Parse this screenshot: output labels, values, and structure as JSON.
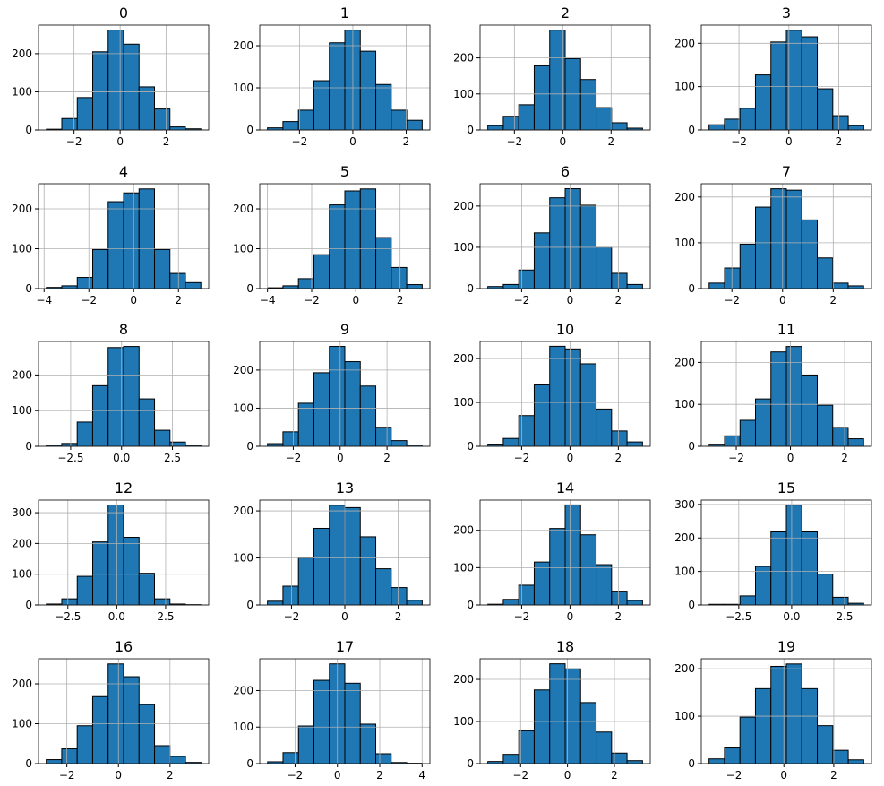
{
  "chart_data": [
    {
      "type": "histogram",
      "title": "0",
      "color": "#1f77b4",
      "grid": true,
      "bins": [
        -3.2,
        -2.53,
        -1.86,
        -1.19,
        -0.52,
        0.15,
        0.82,
        1.49,
        2.16,
        2.83,
        3.5
      ],
      "counts": [
        2,
        30,
        85,
        205,
        262,
        225,
        113,
        55,
        8,
        3
      ],
      "xlim": [
        -3.54,
        3.84
      ],
      "ylim": [
        0,
        275
      ],
      "xticks": [
        {
          "value": -2,
          "label": "−2"
        },
        0,
        2
      ],
      "yticks": [
        0,
        100,
        200
      ]
    },
    {
      "type": "histogram",
      "title": "1",
      "color": "#1f77b4",
      "grid": true,
      "bins": [
        -3.2,
        -2.62,
        -2.04,
        -1.46,
        -0.88,
        -0.3,
        0.28,
        0.86,
        1.44,
        2.02,
        2.6
      ],
      "counts": [
        5,
        20,
        47,
        117,
        207,
        237,
        187,
        108,
        47,
        23
      ],
      "xlim": [
        -3.49,
        2.89
      ],
      "ylim": [
        0,
        249
      ],
      "xticks": [
        {
          "value": -2,
          "label": "−2"
        },
        0,
        2
      ],
      "yticks": [
        0,
        100,
        200
      ]
    },
    {
      "type": "histogram",
      "title": "2",
      "color": "#1f77b4",
      "grid": true,
      "bins": [
        -3.1,
        -2.46,
        -1.82,
        -1.18,
        -0.54,
        0.1,
        0.74,
        1.38,
        2.02,
        2.66,
        3.3
      ],
      "counts": [
        12,
        38,
        70,
        178,
        277,
        198,
        140,
        62,
        20,
        5
      ],
      "xlim": [
        -3.42,
        3.62
      ],
      "ylim": [
        0,
        291
      ],
      "xticks": [
        {
          "value": -2,
          "label": "−2"
        },
        0,
        2
      ],
      "yticks": [
        0,
        100,
        200
      ]
    },
    {
      "type": "histogram",
      "title": "3",
      "color": "#1f77b4",
      "grid": true,
      "bins": [
        -3.2,
        -2.58,
        -1.96,
        -1.34,
        -0.72,
        -0.1,
        0.52,
        1.14,
        1.76,
        2.38,
        3.0
      ],
      "counts": [
        12,
        25,
        50,
        127,
        203,
        230,
        215,
        95,
        33,
        10
      ],
      "xlim": [
        -3.51,
        3.31
      ],
      "ylim": [
        0,
        242
      ],
      "xticks": [
        {
          "value": -2,
          "label": "−2"
        },
        0,
        2
      ],
      "yticks": [
        0,
        100,
        200
      ]
    },
    {
      "type": "histogram",
      "title": "4",
      "color": "#1f77b4",
      "grid": true,
      "bins": [
        -3.9,
        -3.21,
        -2.52,
        -1.83,
        -1.14,
        -0.45,
        0.24,
        0.93,
        1.62,
        2.31,
        3.0
      ],
      "counts": [
        3,
        7,
        28,
        98,
        218,
        240,
        250,
        98,
        38,
        15
      ],
      "xlim": [
        -4.25,
        3.35
      ],
      "ylim": [
        0,
        263
      ],
      "xticks": [
        {
          "value": -4,
          "label": "−4"
        },
        {
          "value": -2,
          "label": "−2"
        },
        0,
        2
      ],
      "yticks": [
        0,
        100,
        200
      ]
    },
    {
      "type": "histogram",
      "title": "5",
      "color": "#1f77b4",
      "grid": true,
      "bins": [
        -4.0,
        -3.3,
        -2.6,
        -1.9,
        -1.2,
        -0.5,
        0.2,
        0.9,
        1.6,
        2.3,
        3.0
      ],
      "counts": [
        2,
        7,
        25,
        85,
        210,
        245,
        250,
        128,
        53,
        10
      ],
      "xlim": [
        -4.35,
        3.35
      ],
      "ylim": [
        0,
        263
      ],
      "xticks": [
        {
          "value": -4,
          "label": "−4"
        },
        {
          "value": -2,
          "label": "−2"
        },
        0,
        2
      ],
      "yticks": [
        0,
        100,
        200
      ]
    },
    {
      "type": "histogram",
      "title": "6",
      "color": "#1f77b4",
      "grid": true,
      "bins": [
        -3.4,
        -2.76,
        -2.12,
        -1.48,
        -0.84,
        -0.2,
        0.44,
        1.08,
        1.72,
        2.36,
        3.0
      ],
      "counts": [
        5,
        10,
        45,
        135,
        220,
        242,
        202,
        100,
        37,
        10
      ],
      "xlim": [
        -3.72,
        3.32
      ],
      "ylim": [
        0,
        254
      ],
      "xticks": [
        {
          "value": -2,
          "label": "−2"
        },
        0,
        2
      ],
      "yticks": [
        0,
        100,
        200
      ]
    },
    {
      "type": "histogram",
      "title": "7",
      "color": "#1f77b4",
      "grid": true,
      "bins": [
        -2.9,
        -2.29,
        -1.68,
        -1.07,
        -0.46,
        0.15,
        0.76,
        1.37,
        1.98,
        2.59,
        3.2
      ],
      "counts": [
        12,
        45,
        97,
        178,
        218,
        215,
        150,
        67,
        12,
        6
      ],
      "xlim": [
        -3.21,
        3.51
      ],
      "ylim": [
        0,
        229
      ],
      "xticks": [
        {
          "value": -2,
          "label": "−2"
        },
        0,
        2
      ],
      "yticks": [
        0,
        100,
        200
      ]
    },
    {
      "type": "histogram",
      "title": "8",
      "color": "#1f77b4",
      "grid": true,
      "bins": [
        -3.7,
        -2.94,
        -2.18,
        -1.42,
        -0.66,
        0.1,
        0.86,
        1.62,
        2.38,
        3.14,
        3.9
      ],
      "counts": [
        3,
        8,
        68,
        170,
        277,
        280,
        133,
        45,
        12,
        3
      ],
      "xlim": [
        -4.08,
        4.28
      ],
      "ylim": [
        0,
        294
      ],
      "xticks": [
        {
          "value": -2.5,
          "label": "−2.5"
        },
        {
          "value": 0,
          "label": "0.0"
        },
        2.5
      ],
      "yticks": [
        0,
        100,
        200
      ]
    },
    {
      "type": "histogram",
      "title": "9",
      "color": "#1f77b4",
      "grid": true,
      "bins": [
        -3.1,
        -2.44,
        -1.78,
        -1.12,
        -0.46,
        0.2,
        0.86,
        1.52,
        2.18,
        2.84,
        3.5
      ],
      "counts": [
        7,
        38,
        113,
        193,
        262,
        222,
        158,
        50,
        15,
        3
      ],
      "xlim": [
        -3.43,
        3.83
      ],
      "ylim": [
        0,
        275
      ],
      "xticks": [
        {
          "value": -2,
          "label": "−2"
        },
        0,
        2
      ],
      "yticks": [
        0,
        100,
        200
      ]
    },
    {
      "type": "histogram",
      "title": "10",
      "color": "#1f77b4",
      "grid": true,
      "bins": [
        -3.4,
        -2.76,
        -2.12,
        -1.48,
        -0.84,
        -0.2,
        0.44,
        1.08,
        1.72,
        2.36,
        3.0
      ],
      "counts": [
        5,
        18,
        70,
        140,
        228,
        222,
        188,
        85,
        35,
        10
      ],
      "xlim": [
        -3.72,
        3.32
      ],
      "ylim": [
        0,
        239
      ],
      "xticks": [
        {
          "value": -2,
          "label": "−2"
        },
        0,
        2
      ],
      "yticks": [
        0,
        100,
        200
      ]
    },
    {
      "type": "histogram",
      "title": "11",
      "color": "#1f77b4",
      "grid": true,
      "bins": [
        -3.0,
        -2.43,
        -1.86,
        -1.29,
        -0.72,
        -0.15,
        0.42,
        0.99,
        1.56,
        2.13,
        2.7
      ],
      "counts": [
        5,
        25,
        62,
        113,
        225,
        238,
        170,
        98,
        45,
        18
      ],
      "xlim": [
        -3.29,
        2.99
      ],
      "ylim": [
        0,
        250
      ],
      "xticks": [
        {
          "value": -2,
          "label": "−2"
        },
        0,
        2
      ],
      "yticks": [
        0,
        100,
        200
      ]
    },
    {
      "type": "histogram",
      "title": "12",
      "color": "#1f77b4",
      "grid": true,
      "bins": [
        -3.6,
        -2.81,
        -2.02,
        -1.23,
        -0.44,
        0.35,
        1.14,
        1.93,
        2.72,
        3.51,
        4.3
      ],
      "counts": [
        3,
        20,
        93,
        205,
        325,
        220,
        103,
        20,
        3,
        1
      ],
      "xlim": [
        -4.0,
        4.7
      ],
      "ylim": [
        0,
        341
      ],
      "xticks": [
        {
          "value": -2.5,
          "label": "−2.5"
        },
        {
          "value": 0,
          "label": "0.0"
        },
        2.5
      ],
      "yticks": [
        0,
        100,
        200,
        300
      ]
    },
    {
      "type": "histogram",
      "title": "13",
      "color": "#1f77b4",
      "grid": true,
      "bins": [
        -2.9,
        -2.32,
        -1.74,
        -1.16,
        -0.58,
        0,
        0.58,
        1.16,
        1.74,
        2.32,
        2.9
      ],
      "counts": [
        8,
        40,
        100,
        163,
        212,
        207,
        145,
        77,
        37,
        10
      ],
      "xlim": [
        -3.19,
        3.19
      ],
      "ylim": [
        0,
        223
      ],
      "xticks": [
        {
          "value": -2,
          "label": "−2"
        },
        0,
        2
      ],
      "yticks": [
        0,
        100,
        200
      ]
    },
    {
      "type": "histogram",
      "title": "14",
      "color": "#1f77b4",
      "grid": true,
      "bins": [
        -3.4,
        -2.76,
        -2.12,
        -1.48,
        -0.84,
        -0.2,
        0.44,
        1.08,
        1.72,
        2.36,
        3.0
      ],
      "counts": [
        2,
        15,
        53,
        115,
        205,
        268,
        188,
        108,
        37,
        12
      ],
      "xlim": [
        -3.72,
        3.32
      ],
      "ylim": [
        0,
        281
      ],
      "xticks": [
        {
          "value": -2,
          "label": "−2"
        },
        0,
        2
      ],
      "yticks": [
        0,
        100,
        200
      ]
    },
    {
      "type": "histogram",
      "title": "15",
      "color": "#1f77b4",
      "grid": true,
      "bins": [
        -3.9,
        -3.17,
        -2.44,
        -1.71,
        -0.98,
        -0.25,
        0.48,
        1.21,
        1.94,
        2.67,
        3.4
      ],
      "counts": [
        2,
        2,
        27,
        115,
        218,
        298,
        218,
        92,
        23,
        5
      ],
      "xlim": [
        -4.27,
        3.77
      ],
      "ylim": [
        0,
        313
      ],
      "xticks": [
        {
          "value": -2.5,
          "label": "−2.5"
        },
        {
          "value": 0,
          "label": "0.0"
        },
        2.5
      ],
      "yticks": [
        0,
        100,
        200,
        300
      ]
    },
    {
      "type": "histogram",
      "title": "16",
      "color": "#1f77b4",
      "grid": true,
      "bins": [
        -2.8,
        -2.2,
        -1.6,
        -1.0,
        -0.4,
        0.2,
        0.8,
        1.4,
        2.0,
        2.6,
        3.2
      ],
      "counts": [
        10,
        37,
        95,
        168,
        250,
        218,
        148,
        45,
        18,
        3
      ],
      "xlim": [
        -3.1,
        3.5
      ],
      "ylim": [
        0,
        263
      ],
      "xticks": [
        {
          "value": -2,
          "label": "−2"
        },
        0,
        2
      ],
      "yticks": [
        0,
        100,
        200
      ]
    },
    {
      "type": "histogram",
      "title": "17",
      "color": "#1f77b4",
      "grid": true,
      "bins": [
        -3.3,
        -2.57,
        -1.84,
        -1.11,
        -0.38,
        0.35,
        1.08,
        1.81,
        2.54,
        3.27,
        4.0
      ],
      "counts": [
        5,
        30,
        103,
        228,
        273,
        220,
        108,
        27,
        3,
        1
      ],
      "xlim": [
        -3.67,
        4.37
      ],
      "ylim": [
        0,
        287
      ],
      "xticks": [
        {
          "value": -2,
          "label": "−2"
        },
        0,
        2,
        4
      ],
      "yticks": [
        0,
        100,
        200
      ]
    },
    {
      "type": "histogram",
      "title": "18",
      "color": "#1f77b4",
      "grid": true,
      "bins": [
        -3.4,
        -2.74,
        -2.08,
        -1.42,
        -0.76,
        -0.1,
        0.56,
        1.22,
        1.88,
        2.54,
        3.2
      ],
      "counts": [
        5,
        22,
        78,
        175,
        237,
        225,
        145,
        75,
        25,
        7
      ],
      "xlim": [
        -3.73,
        3.53
      ],
      "ylim": [
        0,
        249
      ],
      "xticks": [
        {
          "value": -2,
          "label": "−2"
        },
        0,
        2
      ],
      "yticks": [
        0,
        100,
        200
      ]
    },
    {
      "type": "histogram",
      "title": "19",
      "color": "#1f77b4",
      "grid": true,
      "bins": [
        -3.0,
        -2.38,
        -1.76,
        -1.14,
        -0.52,
        0.1,
        0.72,
        1.34,
        1.96,
        2.58,
        3.2
      ],
      "counts": [
        10,
        33,
        98,
        158,
        205,
        210,
        158,
        80,
        28,
        8
      ],
      "xlim": [
        -3.31,
        3.51
      ],
      "ylim": [
        0,
        221
      ],
      "xticks": [
        {
          "value": -2,
          "label": "−2"
        },
        0,
        2
      ],
      "yticks": [
        0,
        100,
        200
      ]
    }
  ]
}
